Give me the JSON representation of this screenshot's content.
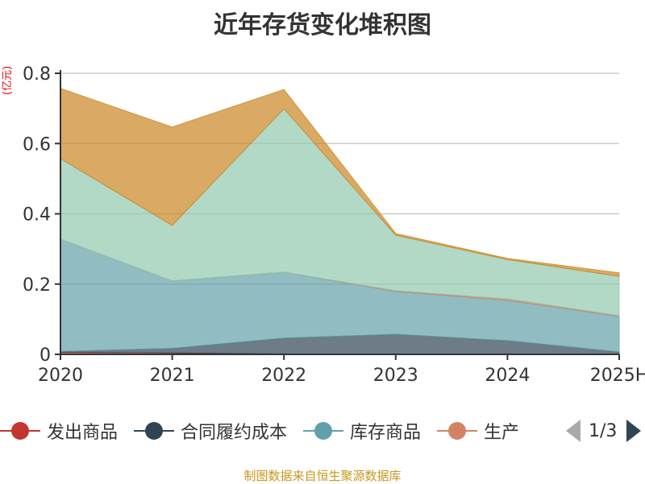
{
  "chart_data": {
    "type": "area",
    "stacked": true,
    "title": "近年存货变化堆积图",
    "ylabel": "(亿元)",
    "categories": [
      "2020",
      "2021",
      "2022",
      "2023",
      "2024",
      "2025H"
    ],
    "ylim": [
      0,
      0.8
    ],
    "yticks": [
      "0",
      "0.2",
      "0.4",
      "0.6",
      "0.8"
    ],
    "grid": true,
    "legend_position": "bottom",
    "series": [
      {
        "name": "发出商品",
        "color": "#c23531",
        "values": [
          0.006,
          0.004,
          0.001,
          0,
          0,
          0
        ]
      },
      {
        "name": "合同履约成本",
        "color": "#2f4554",
        "values": [
          0.002,
          0.013,
          0.045,
          0.057,
          0.039,
          0.007
        ]
      },
      {
        "name": "库存商品",
        "color": "#61a0a8",
        "values": [
          0.32,
          0.192,
          0.188,
          0.122,
          0.115,
          0.101
        ]
      },
      {
        "name": "生产",
        "color": "#d48265",
        "values": [
          0,
          0,
          0,
          0.002,
          0.004,
          0.002
        ]
      },
      {
        "color": "#91c7ae",
        "values": [
          0.229,
          0.158,
          0.465,
          0.158,
          0.112,
          0.112
        ]
      },
      {
        "color": "#ca8622",
        "values": [
          0.2,
          0.28,
          0.055,
          0.005,
          0.003,
          0.01
        ]
      }
    ]
  },
  "legend": {
    "page": "1/3",
    "prev_color": "#aaaaaa",
    "next_color": "#2f4554"
  },
  "source": "制图数据来自恒生聚源数据库"
}
